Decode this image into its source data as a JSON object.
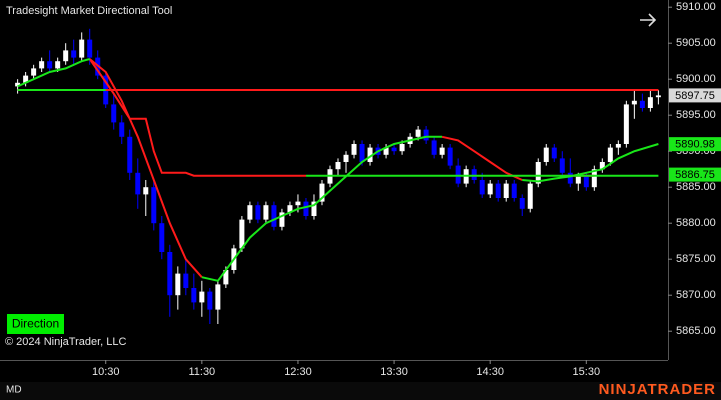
{
  "chart_data": {
    "type": "candlestick",
    "title": "Tradesight Market Directional Tool",
    "button": "Direction",
    "copyright": "© 2024 NinjaTrader, LLC",
    "instrument_tag": "MD",
    "brand": "NINJATRADER",
    "up_color": "#ffffff",
    "down_color": "#0000ff",
    "x": [
      "09:35",
      "09:40",
      "09:45",
      "09:50",
      "09:55",
      "10:00",
      "10:05",
      "10:10",
      "10:15",
      "10:20",
      "10:25",
      "10:30",
      "10:35",
      "10:40",
      "10:45",
      "10:50",
      "10:55",
      "11:00",
      "11:05",
      "11:10",
      "11:15",
      "11:20",
      "11:25",
      "11:30",
      "11:35",
      "11:40",
      "11:45",
      "11:50",
      "11:55",
      "12:00",
      "12:05",
      "12:10",
      "12:15",
      "12:20",
      "12:25",
      "12:30",
      "12:35",
      "12:40",
      "12:45",
      "12:50",
      "12:55",
      "13:00",
      "13:05",
      "13:10",
      "13:15",
      "13:20",
      "13:25",
      "13:30",
      "13:35",
      "13:40",
      "13:45",
      "13:50",
      "13:55",
      "14:00",
      "14:05",
      "14:10",
      "14:15",
      "14:20",
      "14:25",
      "14:30",
      "14:35",
      "14:40",
      "14:45",
      "14:50",
      "14:55",
      "15:00",
      "15:05",
      "15:10",
      "15:15",
      "15:20",
      "15:25",
      "15:30",
      "15:35",
      "15:40",
      "15:45",
      "15:50",
      "15:55",
      "16:00",
      "16:05",
      "16:10",
      "16:15"
    ],
    "open": [
      5899,
      5899.5,
      5900.5,
      5901.5,
      5902.5,
      5901.5,
      5902.5,
      5904,
      5903,
      5905.5,
      5903,
      5900.5,
      5896.5,
      5894,
      5892,
      5887,
      5884,
      5885,
      5880,
      5876,
      5870,
      5873,
      5871,
      5869,
      5870.5,
      5868,
      5871.5,
      5873.5,
      5876.5,
      5880.5,
      5882.5,
      5880.5,
      5882.5,
      5879.5,
      5881.5,
      5882.5,
      5883,
      5881,
      5883,
      5885.5,
      5887.5,
      5888.5,
      5889.5,
      5891,
      5888.5,
      5890.5,
      5889.5,
      5890.5,
      5890,
      5891,
      5892,
      5893,
      5891.5,
      5889.5,
      5890.5,
      5888,
      5885.5,
      5887.5,
      5886,
      5884,
      5885.5,
      5883.5,
      5885.5,
      5883.5,
      5882,
      5885.5,
      5888.5,
      5890.5,
      5889,
      5887,
      5885.5,
      5886.5,
      5885,
      5887.5,
      5888.5,
      5890.5,
      5891,
      5896.5,
      5897,
      5896,
      5897.5
    ],
    "high": [
      5900,
      5901,
      5902,
      5903,
      5904,
      5903,
      5905,
      5905.5,
      5906.5,
      5907,
      5904,
      5901,
      5898,
      5895,
      5893,
      5889,
      5886,
      5886,
      5881,
      5877,
      5874,
      5875,
      5873,
      5872,
      5871,
      5872,
      5874,
      5877,
      5881,
      5883,
      5883,
      5883,
      5883,
      5882,
      5883,
      5884,
      5883.5,
      5884,
      5886,
      5888,
      5889,
      5890,
      5891.5,
      5891.5,
      5891,
      5891,
      5891,
      5891,
      5891.5,
      5892.5,
      5893.5,
      5893.5,
      5892,
      5891,
      5891,
      5889,
      5888,
      5888,
      5887,
      5886,
      5886,
      5886,
      5886,
      5884,
      5886,
      5889,
      5891,
      5891,
      5890,
      5889,
      5887,
      5887,
      5888,
      5889,
      5891,
      5891.5,
      5897,
      5898.5,
      5898,
      5898.5,
      5898.5
    ],
    "low": [
      5898,
      5899,
      5900,
      5901,
      5901,
      5901,
      5902,
      5902,
      5902.5,
      5902,
      5900,
      5896,
      5893,
      5891,
      5886,
      5882,
      5881,
      5879,
      5875,
      5867,
      5868,
      5870,
      5868,
      5867,
      5866,
      5866,
      5871,
      5873,
      5876,
      5880,
      5880,
      5880,
      5879,
      5879,
      5881,
      5881.5,
      5880.5,
      5880.5,
      5882.5,
      5885,
      5886.5,
      5887,
      5889,
      5888,
      5888,
      5889,
      5889,
      5889.5,
      5889.5,
      5890.5,
      5891.5,
      5891,
      5889,
      5889,
      5887.5,
      5885,
      5885,
      5885.5,
      5883.5,
      5883.5,
      5883,
      5883,
      5883,
      5881,
      5881.5,
      5885,
      5888,
      5888.5,
      5886.5,
      5885,
      5884.5,
      5884.5,
      5884.5,
      5887,
      5888,
      5889.5,
      5890.5,
      5894.5,
      5895.5,
      5895.5,
      5896.5
    ],
    "close": [
      5899.5,
      5900.5,
      5901.5,
      5902.5,
      5901.5,
      5902.5,
      5904,
      5903,
      5905.5,
      5903,
      5900.5,
      5896.5,
      5894,
      5892,
      5887,
      5884,
      5885,
      5880,
      5876,
      5870,
      5873,
      5871,
      5869,
      5870.5,
      5868,
      5871.5,
      5873.5,
      5876.5,
      5880.5,
      5882.5,
      5880.5,
      5882.5,
      5879.5,
      5881.5,
      5882.5,
      5883,
      5881,
      5883,
      5885.5,
      5887.5,
      5888.5,
      5889.5,
      5891,
      5888.5,
      5890.5,
      5889.5,
      5890.5,
      5890,
      5891,
      5892,
      5893,
      5891.5,
      5889.5,
      5890.5,
      5888,
      5885.5,
      5887.5,
      5886,
      5884,
      5885.5,
      5883.5,
      5885.5,
      5883.5,
      5882,
      5885.5,
      5888.5,
      5890.5,
      5889,
      5887,
      5885.5,
      5886.5,
      5885,
      5887.5,
      5888.5,
      5890.5,
      5891,
      5896.5,
      5897,
      5896,
      5897.5,
      5897.75
    ],
    "lines": [
      {
        "color": "#ff1a1a",
        "x": [
          "10:20",
          "10:30",
          "10:40",
          "10:50",
          "11:00",
          "11:10",
          "11:20",
          "11:30",
          null,
          "10:20",
          "10:35",
          "10:45",
          "10:55",
          "11:00",
          "11:05",
          "11:20",
          "11:25",
          "12:35",
          null,
          "14:00",
          "14:10",
          "14:20",
          "14:30",
          "14:40",
          "14:50",
          null,
          "15:15",
          "15:35",
          null,
          "09:35",
          "16:15"
        ],
        "values": [
          5902.8,
          5901,
          5897,
          5892,
          5886,
          5880,
          5875,
          5872.5,
          null,
          5902.8,
          5898,
          5894.5,
          5894.5,
          5890,
          5887,
          5887,
          5886.6,
          5886.6,
          null,
          5892,
          5891.5,
          5890,
          5888.5,
          5887,
          5886,
          null,
          5886.6,
          5886.6,
          null,
          5898.5,
          5898.5
        ]
      },
      {
        "color": "#19e619",
        "x": [
          "09:35",
          "09:45",
          "09:55",
          "10:05",
          "10:15",
          "10:20",
          null,
          "09:35",
          "10:30",
          null,
          "11:30",
          "11:40",
          "11:50",
          "12:00",
          "12:10",
          "12:20",
          "12:30",
          "12:40",
          "12:50",
          "13:00",
          "13:10",
          "13:20",
          "13:30",
          "13:40",
          "13:50",
          "14:00",
          null,
          "14:50",
          "15:00",
          "15:10",
          "15:20",
          "15:30",
          "15:40",
          "15:50",
          "16:00",
          "16:15",
          null,
          "12:35",
          "16:15"
        ],
        "values": [
          5899,
          5900,
          5901,
          5901.5,
          5902.5,
          5902.8,
          null,
          5898.5,
          5898.5,
          null,
          5872.5,
          5872,
          5875,
          5878,
          5880,
          5881,
          5882,
          5882.5,
          5884.5,
          5886.5,
          5888.5,
          5890,
          5891,
          5891.5,
          5892,
          5892,
          null,
          5886,
          5885.8,
          5886.2,
          5886.5,
          5887,
          5887.5,
          5889,
          5890,
          5891,
          null,
          5886.6,
          5886.6
        ]
      }
    ],
    "price_markers": [
      {
        "value": 5897.75,
        "color": "#d9d9d9"
      },
      {
        "value": 5890.98,
        "color": "#19e619"
      },
      {
        "value": 5886.75,
        "color": "#19e619"
      }
    ],
    "xlim": [
      "09:24",
      "16:21"
    ],
    "xticks": [
      "10:30",
      "11:30",
      "12:30",
      "13:30",
      "14:30",
      "15:30"
    ],
    "ylim": [
      5861,
      5911
    ],
    "yticks": [
      {
        "value": 5865,
        "label": "5865.00"
      },
      {
        "value": 5870,
        "label": "5870.00"
      },
      {
        "value": 5875,
        "label": "5875.00"
      },
      {
        "value": 5880,
        "label": "5880.00"
      },
      {
        "value": 5885,
        "label": "5885.00"
      },
      {
        "value": 5890,
        "label": "5890.00"
      },
      {
        "value": 5895,
        "label": "5895.00"
      },
      {
        "value": 5900,
        "label": "5900.00"
      },
      {
        "value": 5905,
        "label": "5905.00"
      },
      {
        "value": 5910,
        "label": "5910.00"
      }
    ]
  }
}
